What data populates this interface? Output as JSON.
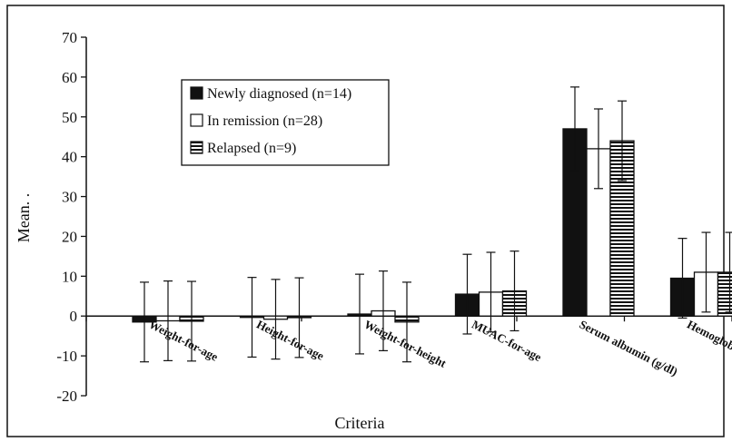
{
  "chart_data": {
    "type": "bar",
    "title": "",
    "xlabel": "Criteria",
    "ylabel": "Mean. .",
    "ylim": [
      -20,
      70
    ],
    "yticks": [
      -20,
      -10,
      0,
      10,
      20,
      30,
      40,
      50,
      60,
      70
    ],
    "grid": false,
    "legend_position": "top-left",
    "categories": [
      "Weight-for-age",
      "Height-for-age",
      "Weight-for-height",
      "MUAC-for-age",
      "Serum albumin (g/dl)",
      "Hemoglobin (g/dl)"
    ],
    "series": [
      {
        "name": "Newly diagnosed (n=14)",
        "fill": "solid",
        "values": [
          -1.5,
          -0.3,
          0.5,
          5.5,
          47,
          9.5
        ],
        "error": [
          10,
          10,
          10,
          10,
          10.5,
          10
        ]
      },
      {
        "name": "In remission (n=28)",
        "fill": "hollow",
        "values": [
          -1.2,
          -0.8,
          1.3,
          6,
          42,
          11
        ],
        "error": [
          10,
          10,
          10,
          10,
          10,
          10
        ]
      },
      {
        "name": "Relapsed (n=9)",
        "fill": "striped",
        "values": [
          -1.3,
          -0.4,
          -1.5,
          6.3,
          44,
          11
        ],
        "error": [
          10,
          10,
          10,
          10,
          10,
          10
        ]
      }
    ]
  }
}
